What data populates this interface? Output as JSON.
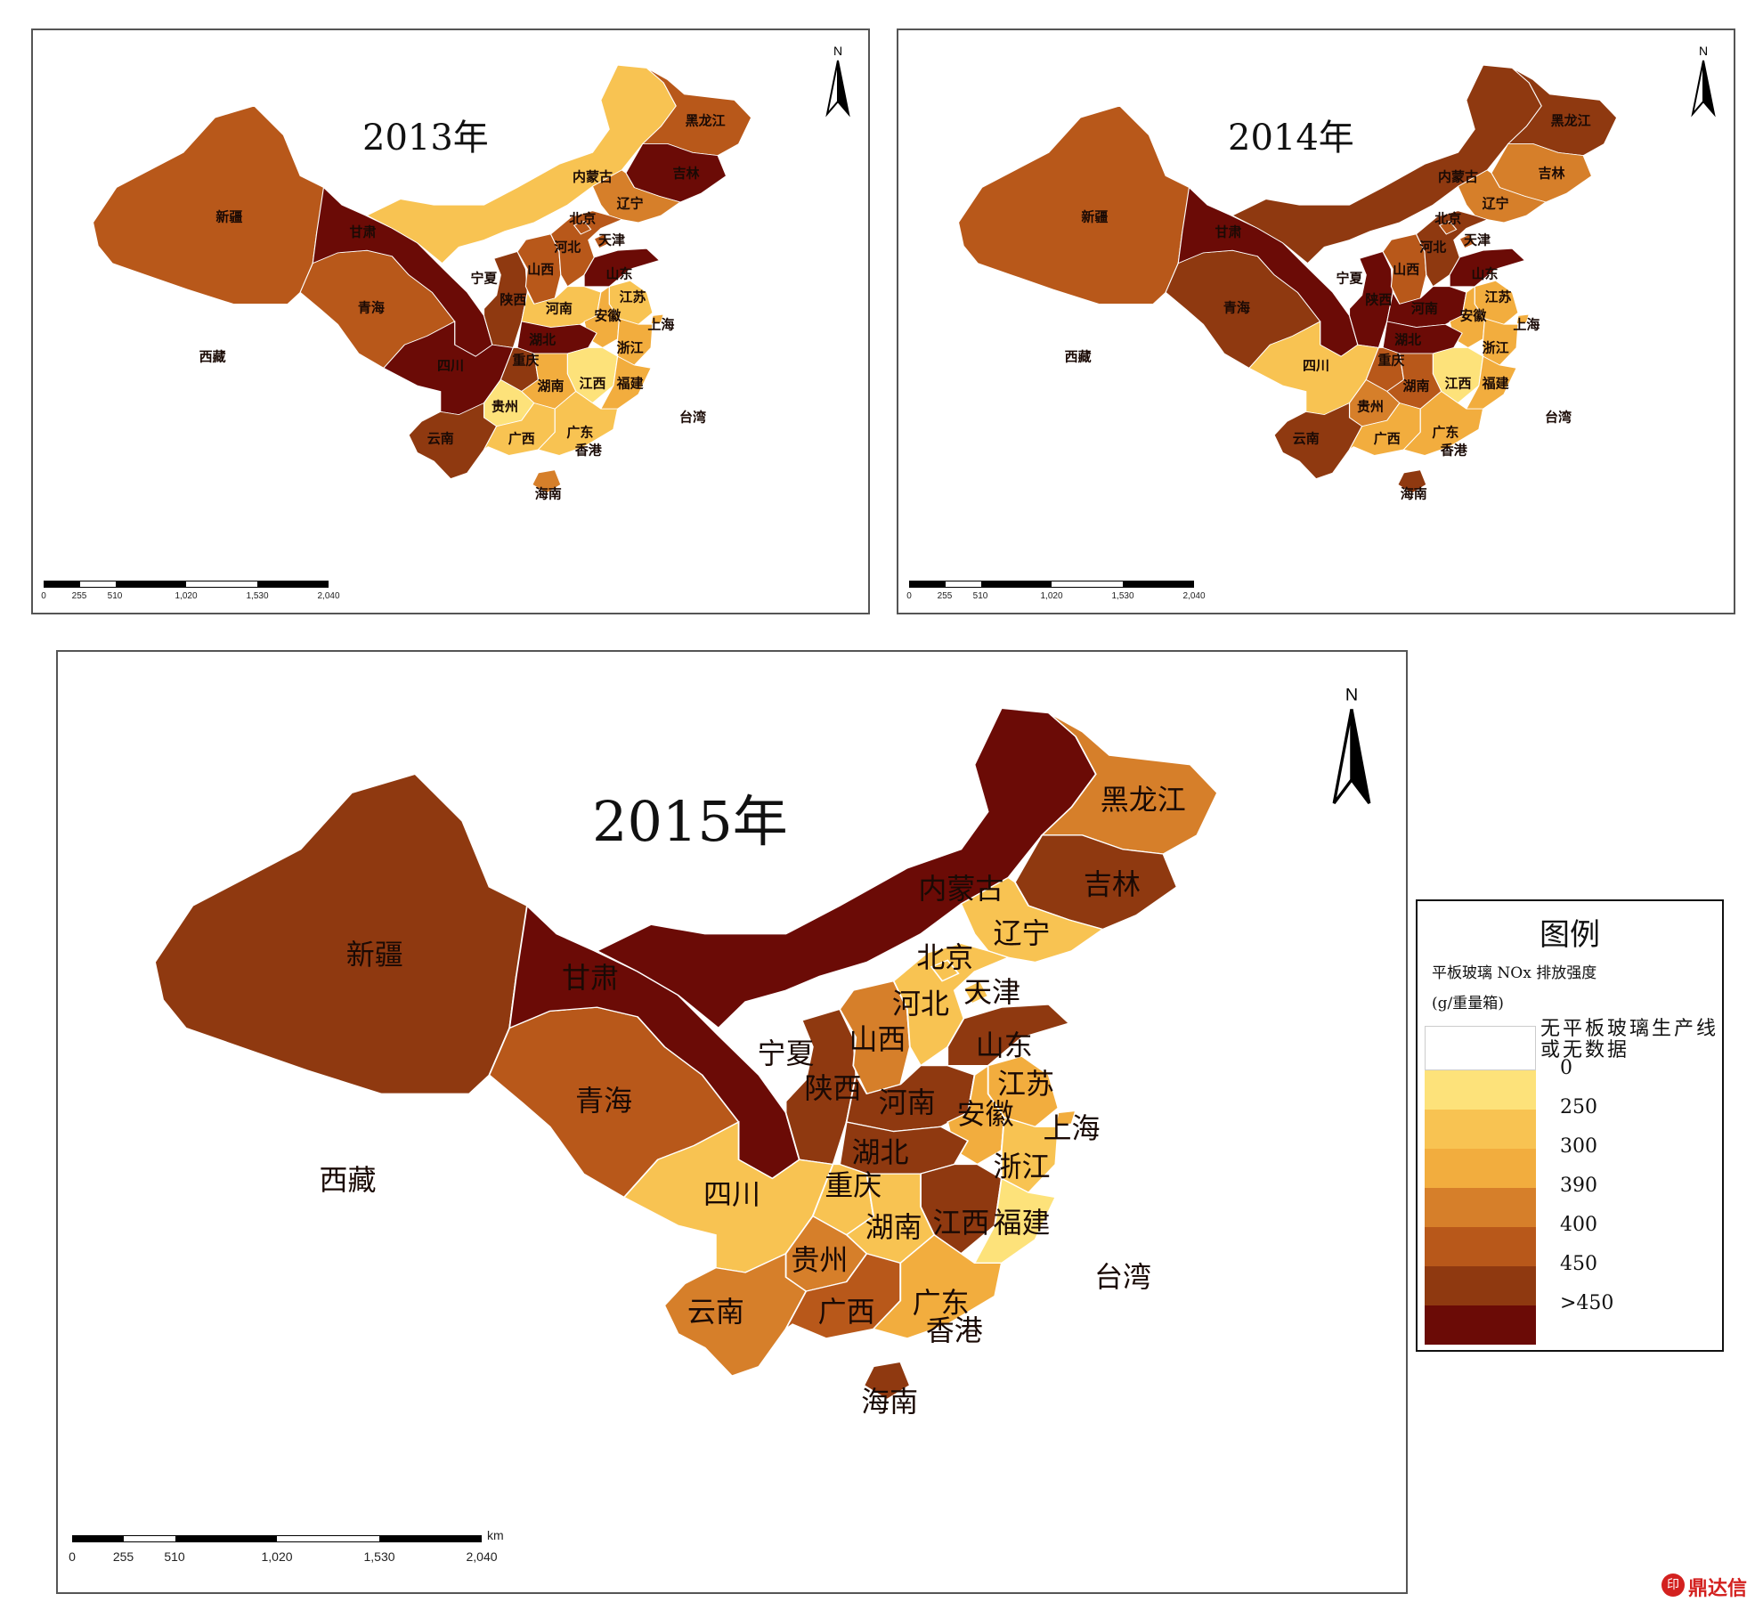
{
  "colors": {
    "none": "#ffffff",
    "c0": "#fde27a",
    "c250": "#f8c352",
    "c300": "#f2ad3e",
    "c390": "#d67f2a",
    "c400": "#b8581a",
    "c450": "#8f3910",
    "cmax": "#6b0b06"
  },
  "legend": {
    "title": "图例",
    "subtitle_line1": "平板玻璃 NOx 排放强度",
    "subtitle_line2": "(g/重量箱)",
    "items": [
      {
        "label": "无平板玻璃生产线或无数据",
        "color": "#ffffff"
      },
      {
        "label": "0",
        "color": "#fde27a"
      },
      {
        "label": "250",
        "color": "#f8c352"
      },
      {
        "label": "300",
        "color": "#f2ad3e"
      },
      {
        "label": "390",
        "color": "#d67f2a"
      },
      {
        "label": "400",
        "color": "#b8581a"
      },
      {
        "label": "450",
        "color": "#8f3910"
      },
      {
        "label": ">450",
        "color": "#6b0b06"
      }
    ]
  },
  "scalebar": {
    "ticks": [
      "0",
      "255",
      "510",
      "1,020",
      "1,530",
      "2,040"
    ],
    "unit": "km"
  },
  "north_label": "N",
  "watermark": {
    "text": "鼎达信",
    "logo": "印"
  },
  "maps": [
    {
      "title": "2013年",
      "provinces": {
        "xinjiang": "c400",
        "xizang": "none",
        "qinghai": "c400",
        "gansu": "cmax",
        "neimenggu": "c250",
        "heilongjiang": "c400",
        "jilin": "cmax",
        "liaoning": "c390",
        "ningxia": "none",
        "shaanxi": "c450",
        "shanxi": "c400",
        "hebei": "c400",
        "beijing": "c400",
        "tianjin": "c400",
        "shandong": "cmax",
        "henan": "c250",
        "jiangsu": "c250",
        "anhui": "c300",
        "shanghai": "c300",
        "sichuan": "cmax",
        "chongqing": "c450",
        "hubei": "cmax",
        "hunan": "c300",
        "jiangxi": "c0",
        "zhejiang": "c300",
        "fujian": "c300",
        "guizhou": "c0",
        "yunnan": "c450",
        "guangxi": "c250",
        "guangdong": "c250",
        "hainan": "c390",
        "taiwan": "none"
      },
      "labels": {
        "xinjiang": "新疆",
        "xizang": "西藏",
        "qinghai": "青海",
        "gansu": "甘肃",
        "neimenggu": "内蒙古",
        "heilongjiang": "黑龙江",
        "jilin": "吉林",
        "liaoning": "辽宁",
        "beijing": "北京",
        "tianjin": "天津",
        "hebei": "河北",
        "shanxi": "山西",
        "shandong": "山东",
        "ningxia": "宁夏",
        "shaanxi": "陕西",
        "henan": "河南",
        "jiangsu": "江苏",
        "anhui": "安徽",
        "shanghai": "上海",
        "hubei": "湖北",
        "sichuan": "四川",
        "chongqing": "重庆",
        "zhejiang": "浙江",
        "guizhou": "贵州",
        "hunan": "湖南",
        "jiangxi": "江西",
        "fujian": "福建",
        "yunnan": "云南",
        "guangxi": "广西",
        "guangdong": "广东",
        "xianggang": "香港",
        "taiwan": "台湾",
        "hainan": "海南"
      }
    },
    {
      "title": "2014年",
      "provinces": {
        "xinjiang": "c400",
        "xizang": "none",
        "qinghai": "c450",
        "gansu": "cmax",
        "neimenggu": "c450",
        "heilongjiang": "c450",
        "jilin": "c390",
        "liaoning": "c390",
        "ningxia": "none",
        "shaanxi": "cmax",
        "shanxi": "c400",
        "hebei": "c450",
        "beijing": "c400",
        "tianjin": "c400",
        "shandong": "cmax",
        "henan": "cmax",
        "jiangsu": "c300",
        "anhui": "c300",
        "shanghai": "c300",
        "sichuan": "c250",
        "chongqing": "c400",
        "hubei": "cmax",
        "hunan": "c400",
        "jiangxi": "c0",
        "zhejiang": "c300",
        "fujian": "c300",
        "guizhou": "c390",
        "yunnan": "c450",
        "guangxi": "c300",
        "guangdong": "c300",
        "hainan": "c450",
        "taiwan": "none"
      },
      "labels": {
        "xinjiang": "新疆",
        "xizang": "西藏",
        "qinghai": "青海",
        "gansu": "甘肃",
        "neimenggu": "内蒙古",
        "heilongjiang": "黑龙江",
        "jilin": "吉林",
        "liaoning": "辽宁",
        "beijing": "北京",
        "tianjin": "天津",
        "hebei": "河北",
        "shanxi": "山西",
        "shandong": "山东",
        "ningxia": "宁夏",
        "shaanxi": "陕西",
        "henan": "河南",
        "jiangsu": "江苏",
        "anhui": "安徽",
        "shanghai": "上海",
        "hubei": "湖北",
        "sichuan": "四川",
        "chongqing": "重庆",
        "zhejiang": "浙江",
        "guizhou": "贵州",
        "hunan": "湖南",
        "jiangxi": "江西",
        "fujian": "福建",
        "yunnan": "云南",
        "guangxi": "广西",
        "guangdong": "广东",
        "xianggang": "香港",
        "taiwan": "台湾",
        "hainan": "海南"
      }
    },
    {
      "title": "2015年",
      "provinces": {
        "xinjiang": "c450",
        "xizang": "none",
        "qinghai": "c400",
        "gansu": "cmax",
        "neimenggu": "cmax",
        "heilongjiang": "c390",
        "jilin": "c450",
        "liaoning": "c250",
        "ningxia": "none",
        "shaanxi": "c450",
        "shanxi": "c390",
        "hebei": "c250",
        "beijing": "c250",
        "tianjin": "c250",
        "shandong": "c450",
        "henan": "c450",
        "jiangsu": "c300",
        "anhui": "c300",
        "shanghai": "c300",
        "sichuan": "c250",
        "chongqing": "c250",
        "hubei": "c450",
        "hunan": "c250",
        "jiangxi": "c450",
        "zhejiang": "c250",
        "fujian": "c0",
        "guizhou": "c390",
        "yunnan": "c390",
        "guangxi": "c400",
        "guangdong": "c300",
        "hainan": "c450",
        "taiwan": "none"
      },
      "labels": {
        "xinjiang": "新疆",
        "xizang": "西藏",
        "qinghai": "青海",
        "gansu": "甘肃",
        "neimenggu": "内蒙古",
        "heilongjiang": "黑龙江",
        "jilin": "吉林",
        "liaoning": "辽宁",
        "beijing": "北京",
        "tianjin": "天津",
        "hebei": "河北",
        "shanxi": "山西",
        "shandong": "山东",
        "ningxia": "宁夏",
        "shaanxi": "陕西",
        "henan": "河南",
        "jiangsu": "江苏",
        "anhui": "安徽",
        "shanghai": "上海",
        "hubei": "湖北",
        "sichuan": "四川",
        "chongqing": "重庆",
        "zhejiang": "浙江",
        "guizhou": "贵州",
        "hunan": "湖南",
        "jiangxi": "江西",
        "fujian": "福建",
        "yunnan": "云南",
        "guangxi": "广西",
        "guangdong": "广东",
        "xianggang": "香港",
        "taiwan": "台湾",
        "hainan": "海南"
      }
    }
  ]
}
